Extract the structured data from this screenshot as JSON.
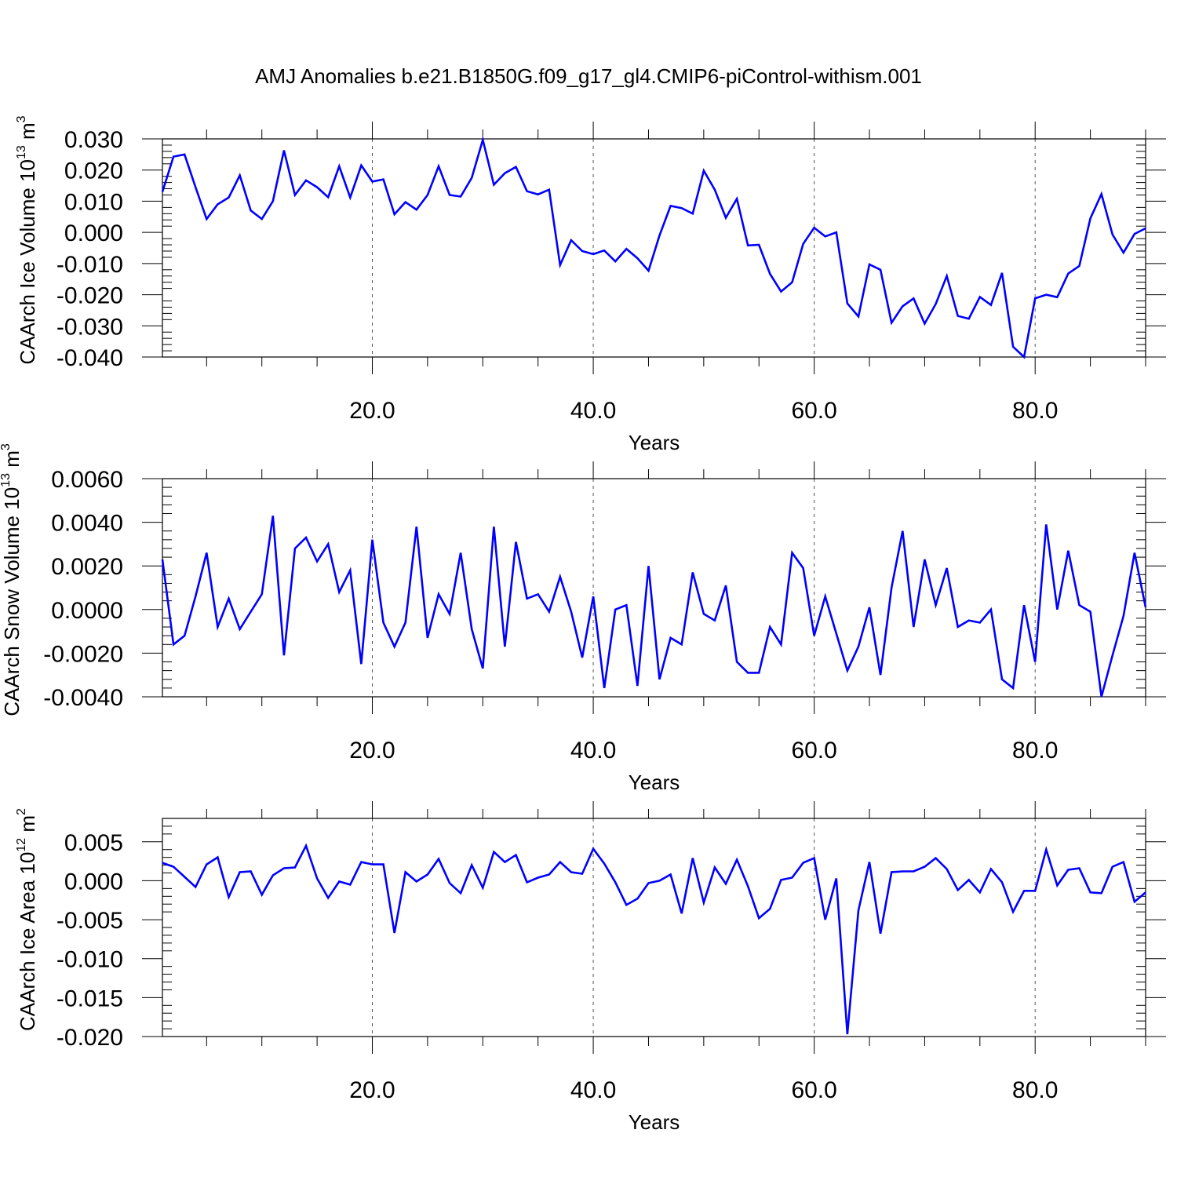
{
  "title": "AMJ Anomalies b.e21.B1850G.f09_g17_gl4.CMIP6-piControl-withism.001",
  "chart_data": [
    {
      "type": "line",
      "ylabel": "CAArch Ice Volume 10",
      "ylabel_exponent": "13",
      "ylabel_unit": " m",
      "ylabel_unit_exponent": "3",
      "xlabel": "Years",
      "xlim": [
        1,
        90
      ],
      "ylim": [
        -0.04,
        0.03
      ],
      "yticks": [
        -0.04,
        -0.03,
        -0.02,
        -0.01,
        0.0,
        0.01,
        0.02,
        0.03
      ],
      "ytick_labels": [
        "-0.040",
        "-0.030",
        "-0.020",
        "-0.010",
        "0.000",
        "0.010",
        "0.020",
        "0.030"
      ],
      "xticks": [
        20,
        40,
        60,
        80
      ],
      "xtick_labels": [
        "20.0",
        "40.0",
        "60.0",
        "80.0"
      ],
      "grid": "vertical dashed at x ticks",
      "line_color": "#0000ff",
      "series": [
        {
          "x_start": 1,
          "values": [
            0.013,
            0.0243,
            0.025,
            0.0145,
            0.0043,
            0.009,
            0.0112,
            0.0183,
            0.007,
            0.0043,
            0.01,
            0.0263,
            0.012,
            0.0167,
            0.0145,
            0.0113,
            0.0212,
            0.0112,
            0.0215,
            0.0163,
            0.017,
            0.0058,
            0.0097,
            0.0073,
            0.012,
            0.0212,
            0.012,
            0.0115,
            0.0175,
            0.0297,
            0.0153,
            0.019,
            0.021,
            0.0132,
            0.0122,
            0.0137,
            -0.0105,
            -0.0025,
            -0.006,
            -0.007,
            -0.0058,
            -0.0093,
            -0.0053,
            -0.0083,
            -0.0123,
            -0.001,
            0.0085,
            0.0078,
            0.006,
            0.0198,
            0.0137,
            0.0047,
            0.0108,
            -0.0042,
            -0.004,
            -0.0133,
            -0.019,
            -0.016,
            -0.0037,
            0.0015,
            -0.0013,
            0.0,
            -0.0228,
            -0.027,
            -0.0103,
            -0.012,
            -0.029,
            -0.0237,
            -0.0212,
            -0.0293,
            -0.023,
            -0.014,
            -0.0268,
            -0.0277,
            -0.0207,
            -0.0233,
            -0.013,
            -0.0367,
            -0.04,
            -0.0212,
            -0.02,
            -0.0208,
            -0.0132,
            -0.0108,
            0.0045,
            0.0123,
            -0.0007,
            -0.0065,
            -0.0005,
            0.0013
          ]
        }
      ]
    },
    {
      "type": "line",
      "ylabel": "CAArch Snow Volume 10",
      "ylabel_exponent": "13",
      "ylabel_unit": " m",
      "ylabel_unit_exponent": "3",
      "xlabel": "Years",
      "xlim": [
        1,
        90
      ],
      "ylim": [
        -0.004,
        0.006
      ],
      "yticks": [
        -0.004,
        -0.002,
        0.0,
        0.002,
        0.004,
        0.006
      ],
      "ytick_labels": [
        "-0.0040",
        "-0.0020",
        "0.0000",
        "0.0020",
        "0.0040",
        "0.0060"
      ],
      "xticks": [
        20,
        40,
        60,
        80
      ],
      "xtick_labels": [
        "20.0",
        "40.0",
        "60.0",
        "80.0"
      ],
      "grid": "vertical dashed at x ticks",
      "line_color": "#0000ff",
      "series": [
        {
          "x_start": 1,
          "values": [
            0.0023,
            -0.0016,
            -0.0012,
            0.0006,
            0.0026,
            -0.0008,
            0.0005,
            -0.0009,
            -0.0001,
            0.0007,
            0.0043,
            -0.0021,
            0.0028,
            0.0033,
            0.0022,
            0.003,
            0.0008,
            0.0018,
            -0.0025,
            0.0032,
            -0.0006,
            -0.0017,
            -0.0006,
            0.0038,
            -0.0013,
            0.0007,
            -0.0002,
            0.0026,
            -0.0009,
            -0.0027,
            0.0038,
            -0.0017,
            0.0031,
            0.0005,
            0.0007,
            -0.0001,
            0.0015,
            -0.0001,
            -0.0022,
            0.0006,
            -0.0036,
            0.0,
            0.0002,
            -0.0035,
            0.002,
            -0.0032,
            -0.0013,
            -0.0016,
            0.0017,
            -0.0002,
            -0.0005,
            0.0011,
            -0.0024,
            -0.0029,
            -0.0029,
            -0.0008,
            -0.0016,
            0.0026,
            0.0019,
            -0.0012,
            0.0006,
            -0.0011,
            -0.0028,
            -0.0017,
            0.0001,
            -0.003,
            0.001,
            0.0036,
            -0.0008,
            0.0023,
            0.0002,
            0.0019,
            -0.0008,
            -0.0005,
            -0.0006,
            0.0,
            -0.0032,
            -0.0036,
            0.0002,
            -0.0024,
            0.0039,
            0.0,
            0.0027,
            0.0002,
            -0.0001,
            -0.004,
            -0.0021,
            -0.0003,
            0.0026,
            0.0001
          ]
        }
      ]
    },
    {
      "type": "line",
      "ylabel": "CAArch Ice Area 10",
      "ylabel_exponent": "12",
      "ylabel_unit": " m",
      "ylabel_unit_exponent": "2",
      "xlabel": "Years",
      "xlim": [
        1,
        90
      ],
      "ylim": [
        -0.02,
        0.008
      ],
      "yticks": [
        -0.02,
        -0.015,
        -0.01,
        -0.005,
        0.0,
        0.005
      ],
      "ytick_labels": [
        "-0.020",
        "-0.015",
        "-0.010",
        "-0.005",
        "0.000",
        "0.005"
      ],
      "xticks": [
        20,
        40,
        60,
        80
      ],
      "xtick_labels": [
        "20.0",
        "40.0",
        "60.0",
        "80.0"
      ],
      "grid": "vertical dashed at x ticks",
      "line_color": "#0000ff",
      "series": [
        {
          "x_start": 1,
          "values": [
            0.0023,
            0.0018,
            0.0005,
            -0.0008,
            0.0021,
            0.003,
            -0.0021,
            0.0011,
            0.0012,
            -0.0018,
            0.0007,
            0.0016,
            0.0017,
            0.0045,
            0.0003,
            -0.0022,
            -0.0001,
            -0.0005,
            0.0024,
            0.0021,
            0.0021,
            -0.0067,
            0.0011,
            -0.0001,
            0.0008,
            0.0028,
            -0.0003,
            -0.0016,
            0.002,
            -0.0009,
            0.0037,
            0.0024,
            0.0033,
            -0.0002,
            0.0004,
            0.0008,
            0.0024,
            0.0011,
            0.0009,
            0.0041,
            0.0022,
            -0.0002,
            -0.0031,
            -0.0023,
            -0.0003,
            0.0,
            0.0008,
            -0.0042,
            0.0029,
            -0.0028,
            0.0017,
            -0.0004,
            0.0027,
            -0.0007,
            -0.0048,
            -0.0036,
            0.0001,
            0.0004,
            0.0023,
            0.0029,
            -0.005,
            0.0003,
            -0.0197,
            -0.0038,
            0.0024,
            -0.0068,
            0.0011,
            0.0012,
            0.0012,
            0.0018,
            0.0029,
            0.0015,
            -0.0012,
            0.0001,
            -0.0015,
            0.0015,
            -0.0002,
            -0.004,
            -0.0013,
            -0.0013,
            0.004,
            -0.0006,
            0.0014,
            0.0016,
            -0.0015,
            -0.0016,
            0.0018,
            0.0024,
            -0.0027,
            -0.0015
          ]
        }
      ]
    }
  ]
}
